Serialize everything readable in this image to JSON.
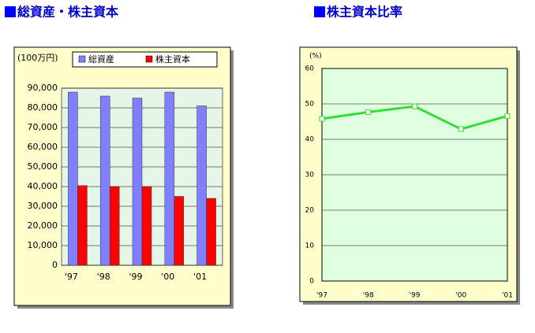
{
  "chart_data": [
    {
      "type": "bar",
      "title": "総資産・株主資本",
      "unit_label": "(100万円)",
      "categories": [
        "'97",
        "'98",
        "'99",
        "'00",
        "'01"
      ],
      "series": [
        {
          "name": "総資産",
          "color": "#8080ff",
          "values": [
            88000,
            86000,
            85000,
            88000,
            81000
          ]
        },
        {
          "name": "株主資本",
          "color": "#ff0000",
          "values": [
            40500,
            40000,
            40000,
            35000,
            34000
          ]
        }
      ],
      "ylim": [
        0,
        90000
      ],
      "yticks": [
        0,
        {
          "value": 10000,
          "label": "10,000"
        },
        {
          "value": 20000,
          "label": "20,000"
        },
        {
          "value": 30000,
          "label": "30,000"
        },
        {
          "value": 40000,
          "label": "40,000"
        },
        {
          "value": 50000,
          "label": "50,000"
        },
        {
          "value": 60000,
          "label": "60,000"
        },
        {
          "value": 70000,
          "label": "70,000"
        },
        {
          "value": 80000,
          "label": "80,000"
        },
        {
          "value": 90000,
          "label": "90,000"
        }
      ],
      "grid": true
    },
    {
      "type": "line",
      "title": "株主資本比率",
      "unit_label": "(%)",
      "categories": [
        "'97",
        "'98",
        "'99",
        "'00",
        "'01"
      ],
      "series": [
        {
          "name": "株主資本比率",
          "color": "#33dd33",
          "values": [
            45.8,
            47.7,
            49.3,
            42.9,
            46.6
          ]
        }
      ],
      "ylim": [
        0,
        60
      ],
      "yticks": [
        0,
        10,
        20,
        30,
        40,
        50,
        60
      ],
      "grid": true
    }
  ]
}
